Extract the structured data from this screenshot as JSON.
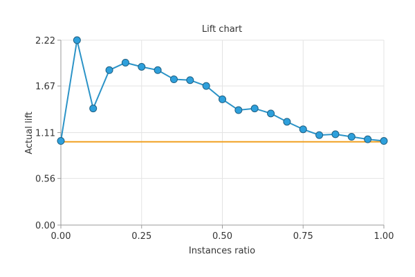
{
  "chart_data": {
    "type": "line",
    "title": "Lift chart",
    "xlabel": "Instances ratio",
    "ylabel": "Actual lift",
    "xlim": [
      0,
      1
    ],
    "ylim": [
      0,
      2.22
    ],
    "x_ticks": [
      0,
      0.25,
      0.5,
      0.75,
      1
    ],
    "x_tick_labels": [
      "0.00",
      "0.25",
      "0.50",
      "0.75",
      "1.00"
    ],
    "y_ticks": [
      0,
      0.56,
      1.11,
      1.67,
      2.22
    ],
    "y_tick_labels": [
      "0.00",
      "0.56",
      "1.11",
      "1.67",
      "2.22"
    ],
    "grid": true,
    "legend": "none",
    "series": [
      {
        "color": "#2b93c7",
        "marker_fill": "#2ea0dc",
        "marker_stroke": "#1e5f82",
        "x": [
          0,
          0.05,
          0.1,
          0.15,
          0.2,
          0.25,
          0.3,
          0.35,
          0.4,
          0.45,
          0.5,
          0.55,
          0.6,
          0.65,
          0.7,
          0.75,
          0.8,
          0.85,
          0.9,
          0.95,
          1.0
        ],
        "y": [
          1.01,
          2.22,
          1.4,
          1.86,
          1.95,
          1.9,
          1.86,
          1.75,
          1.74,
          1.67,
          1.51,
          1.38,
          1.4,
          1.34,
          1.24,
          1.15,
          1.08,
          1.09,
          1.06,
          1.03,
          1.01
        ]
      },
      {
        "color": "#f0a020",
        "x": [
          0,
          1
        ],
        "y": [
          1.0,
          1.0
        ]
      }
    ]
  }
}
